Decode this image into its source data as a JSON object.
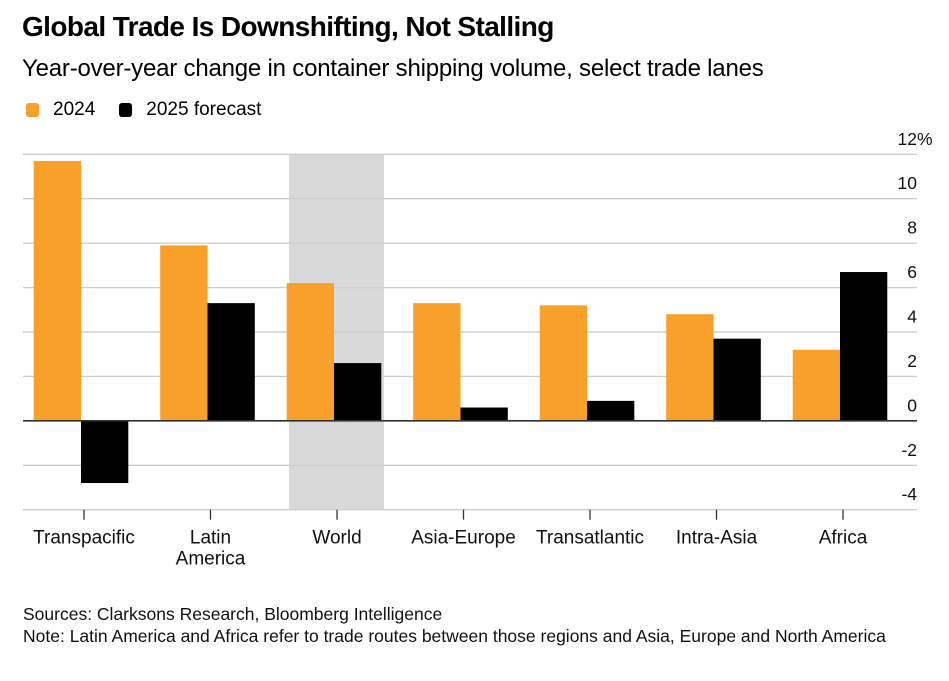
{
  "header": {
    "title": "Global Trade Is Downshifting, Not Stalling",
    "subtitle": "Year-over-year change in container shipping volume, select trade lanes"
  },
  "legend": [
    {
      "label": "2024",
      "color": "#F9A02A"
    },
    {
      "label": "2025 forecast",
      "color": "#000000"
    }
  ],
  "chart_data": {
    "type": "bar",
    "title": "Global Trade Is Downshifting, Not Stalling",
    "subtitle": "Year-over-year change in container shipping volume, select trade lanes",
    "xlabel": "",
    "ylabel": "",
    "categories": [
      "Transpacific",
      "Latin America",
      "World",
      "Asia-Europe",
      "Transatlantic",
      "Intra-Asia",
      "Africa"
    ],
    "category_lines": [
      [
        "Transpacific"
      ],
      [
        "Latin",
        "America"
      ],
      [
        "World"
      ],
      [
        "Asia-Europe"
      ],
      [
        "Transatlantic"
      ],
      [
        "Intra-Asia"
      ],
      [
        "Africa"
      ]
    ],
    "series": [
      {
        "name": "2024",
        "color": "#F9A02A",
        "values": [
          11.7,
          7.9,
          6.2,
          5.3,
          5.2,
          4.8,
          3.2
        ]
      },
      {
        "name": "2025 forecast",
        "color": "#000000",
        "values": [
          -2.8,
          5.3,
          2.6,
          0.6,
          0.9,
          3.7,
          6.7
        ]
      }
    ],
    "highlighted_category": "World",
    "highlight_color": "#D9D9D9",
    "ylim": [
      -4,
      12
    ],
    "yticks": [
      -4,
      -2,
      0,
      2,
      4,
      6,
      8,
      10,
      12
    ],
    "ytick_labels": [
      "-4",
      "-2",
      "0",
      "2",
      "4",
      "6",
      "8",
      "10",
      "12%"
    ],
    "y_axis_side": "right",
    "grid": true,
    "legend_position": "top-left"
  },
  "footer": {
    "sources": "Sources: Clarksons Research, Bloomberg Intelligence",
    "note": "Note: Latin America and Africa refer to trade routes between those regions and Asia, Europe and North America"
  }
}
